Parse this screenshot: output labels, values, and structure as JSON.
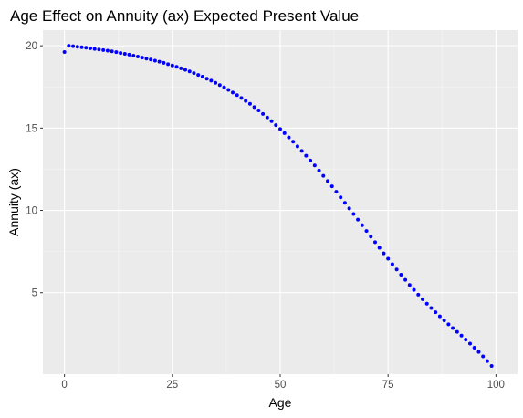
{
  "chart_data": {
    "type": "scatter",
    "title": "Age Effect on Annuity (ax) Expected Present Value",
    "xlabel": "Age",
    "ylabel": "Annuity (ax)",
    "xlim": [
      -5,
      105
    ],
    "ylim": [
      0.05,
      20.95
    ],
    "x_ticks": [
      0,
      25,
      50,
      75,
      100
    ],
    "y_ticks": [
      5,
      10,
      15,
      20
    ],
    "x_tick_labels": [
      "0",
      "25",
      "50",
      "75",
      "100"
    ],
    "y_tick_labels": [
      "5",
      "10",
      "15",
      "20"
    ],
    "grid": true,
    "legend": "none",
    "colors": {
      "panel_background": "#ebebeb",
      "grid_major": "#ffffff",
      "grid_minor": "#f5f5f5",
      "point": "#0000ff"
    },
    "series": [
      {
        "x": [
          0,
          1,
          2,
          3,
          4,
          5,
          6,
          7,
          8,
          9,
          10,
          11,
          12,
          13,
          14,
          15,
          16,
          17,
          18,
          19,
          20,
          21,
          22,
          23,
          24,
          25,
          26,
          27,
          28,
          29,
          30,
          31,
          32,
          33,
          34,
          35,
          36,
          37,
          38,
          39,
          40,
          41,
          42,
          43,
          44,
          45,
          46,
          47,
          48,
          49,
          50,
          51,
          52,
          53,
          54,
          55,
          56,
          57,
          58,
          59,
          60,
          61,
          62,
          63,
          64,
          65,
          66,
          67,
          68,
          69,
          70,
          71,
          72,
          73,
          74,
          75,
          76,
          77,
          78,
          79,
          80,
          81,
          82,
          83,
          84,
          85,
          86,
          87,
          88,
          89,
          90,
          91,
          92,
          93,
          94,
          95,
          96,
          97,
          98,
          99
        ],
        "values": [
          19.62,
          20.0,
          19.97,
          19.94,
          19.91,
          19.88,
          19.85,
          19.81,
          19.77,
          19.74,
          19.7,
          19.66,
          19.61,
          19.56,
          19.51,
          19.46,
          19.4,
          19.34,
          19.28,
          19.22,
          19.16,
          19.09,
          19.03,
          18.96,
          18.88,
          18.8,
          18.72,
          18.63,
          18.54,
          18.44,
          18.34,
          18.23,
          18.12,
          18.0,
          17.88,
          17.75,
          17.61,
          17.47,
          17.32,
          17.16,
          17.0,
          16.83,
          16.65,
          16.47,
          16.27,
          16.07,
          15.86,
          15.64,
          15.42,
          15.18,
          14.94,
          14.69,
          14.43,
          14.17,
          13.89,
          13.61,
          13.32,
          13.03,
          12.73,
          12.42,
          12.1,
          11.78,
          11.46,
          11.13,
          10.79,
          10.46,
          10.12,
          9.78,
          9.44,
          9.1,
          8.75,
          8.41,
          8.07,
          7.73,
          7.39,
          7.06,
          6.73,
          6.41,
          6.09,
          5.78,
          5.47,
          5.17,
          4.88,
          4.6,
          4.33,
          4.07,
          3.81,
          3.56,
          3.32,
          3.08,
          2.85,
          2.62,
          2.39,
          2.15,
          1.91,
          1.66,
          1.4,
          1.13,
          0.85,
          0.55
        ]
      }
    ]
  }
}
